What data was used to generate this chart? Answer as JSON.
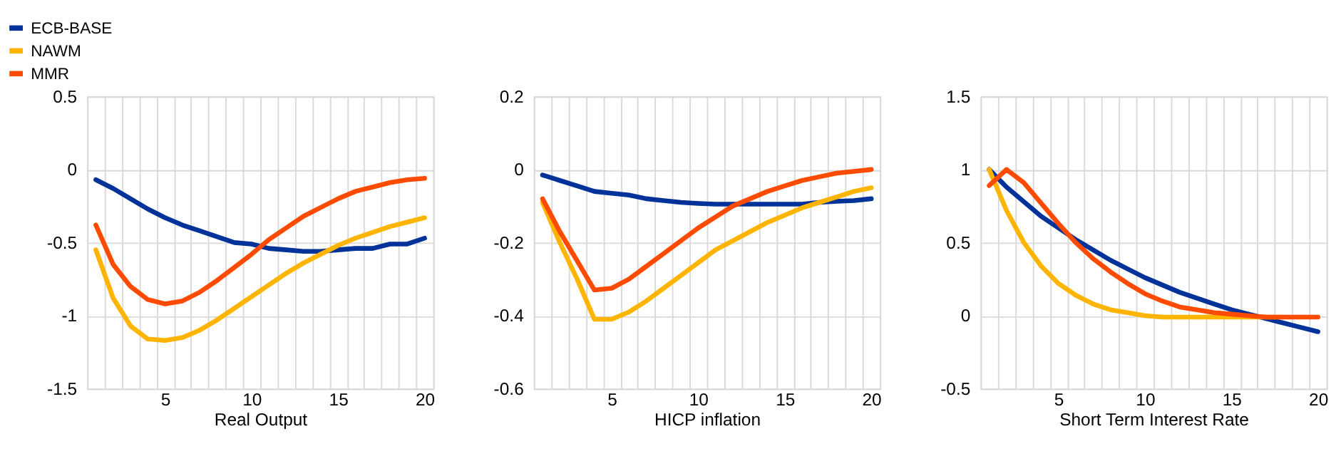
{
  "chart_data": [
    {
      "type": "line",
      "xlabel": "Real Output",
      "legend": "top left",
      "grid": true,
      "line_style": "solid",
      "marker": "none",
      "x": [
        1,
        2,
        3,
        4,
        5,
        6,
        7,
        8,
        9,
        10,
        11,
        12,
        13,
        14,
        15,
        16,
        17,
        18,
        19,
        20
      ],
      "xlim": [
        0.5,
        20.5
      ],
      "xticks": [
        {
          "value": 0.5,
          "label": null
        },
        {
          "value": 1.5,
          "label": null
        },
        {
          "value": 2.5,
          "label": null
        },
        {
          "value": 3.5,
          "label": null
        },
        {
          "value": 4.5,
          "label": null
        },
        5,
        {
          "value": 5.5,
          "label": null
        },
        {
          "value": 6.5,
          "label": null
        },
        {
          "value": 7.5,
          "label": null
        },
        {
          "value": 8.5,
          "label": null
        },
        {
          "value": 9.5,
          "label": null
        },
        10,
        {
          "value": 10.5,
          "label": null
        },
        {
          "value": 11.5,
          "label": null
        },
        {
          "value": 12.5,
          "label": null
        },
        {
          "value": 13.5,
          "label": null
        },
        {
          "value": 14.5,
          "label": null
        },
        15,
        {
          "value": 15.5,
          "label": null
        },
        {
          "value": 16.5,
          "label": null
        },
        {
          "value": 17.5,
          "label": null
        },
        {
          "value": 18.5,
          "label": null
        },
        {
          "value": 19.5,
          "label": null
        },
        20,
        {
          "value": 20.5,
          "label": null
        }
      ],
      "ylim": [
        -1.5,
        0.5
      ],
      "yticks": [
        -1.5,
        -1,
        -0.5,
        0,
        0.5
      ],
      "series": [
        {
          "name": "ECB-BASE",
          "color": "#003299",
          "values": [
            -0.07,
            -0.13,
            -0.2,
            -0.27,
            -0.33,
            -0.38,
            -0.42,
            -0.46,
            -0.5,
            -0.51,
            -0.54,
            -0.55,
            -0.56,
            -0.56,
            -0.55,
            -0.54,
            -0.54,
            -0.51,
            -0.51,
            -0.47
          ]
        },
        {
          "name": "NAWM",
          "color": "#ffb400",
          "values": [
            -0.55,
            -0.88,
            -1.07,
            -1.16,
            -1.17,
            -1.15,
            -1.1,
            -1.03,
            -0.95,
            -0.87,
            -0.79,
            -0.71,
            -0.64,
            -0.58,
            -0.52,
            -0.47,
            -0.43,
            -0.39,
            -0.36,
            -0.33
          ]
        },
        {
          "name": "MMR",
          "color": "#ff4b00",
          "values": [
            -0.38,
            -0.65,
            -0.8,
            -0.89,
            -0.92,
            -0.9,
            -0.84,
            -0.76,
            -0.67,
            -0.58,
            -0.48,
            -0.4,
            -0.32,
            -0.26,
            -0.2,
            -0.15,
            -0.12,
            -0.09,
            -0.07,
            -0.06
          ]
        }
      ]
    },
    {
      "type": "line",
      "xlabel": "HICP inflation",
      "grid": true,
      "line_style": "solid",
      "marker": "none",
      "x": [
        1,
        2,
        3,
        4,
        5,
        6,
        7,
        8,
        9,
        10,
        11,
        12,
        13,
        14,
        15,
        16,
        17,
        18,
        19,
        20
      ],
      "xlim": [
        0.5,
        20.5
      ],
      "xticks": [
        {
          "value": 0.5,
          "label": null
        },
        {
          "value": 1.5,
          "label": null
        },
        {
          "value": 2.5,
          "label": null
        },
        {
          "value": 3.5,
          "label": null
        },
        {
          "value": 4.5,
          "label": null
        },
        5,
        {
          "value": 5.5,
          "label": null
        },
        {
          "value": 6.5,
          "label": null
        },
        {
          "value": 7.5,
          "label": null
        },
        {
          "value": 8.5,
          "label": null
        },
        {
          "value": 9.5,
          "label": null
        },
        10,
        {
          "value": 10.5,
          "label": null
        },
        {
          "value": 11.5,
          "label": null
        },
        {
          "value": 12.5,
          "label": null
        },
        {
          "value": 13.5,
          "label": null
        },
        {
          "value": 14.5,
          "label": null
        },
        15,
        {
          "value": 15.5,
          "label": null
        },
        {
          "value": 16.5,
          "label": null
        },
        {
          "value": 17.5,
          "label": null
        },
        {
          "value": 18.5,
          "label": null
        },
        {
          "value": 19.5,
          "label": null
        },
        20,
        {
          "value": 20.5,
          "label": null
        }
      ],
      "ylim": [
        -0.6,
        0.2
      ],
      "yticks": [
        -0.6,
        -0.4,
        -0.2,
        0,
        0.2
      ],
      "series": [
        {
          "name": "ECB-BASE",
          "color": "#003299",
          "values": [
            -0.015,
            -0.03,
            -0.045,
            -0.06,
            -0.065,
            -0.07,
            -0.08,
            -0.085,
            -0.09,
            -0.093,
            -0.095,
            -0.095,
            -0.095,
            -0.095,
            -0.095,
            -0.095,
            -0.09,
            -0.087,
            -0.085,
            -0.08
          ]
        },
        {
          "name": "NAWM",
          "color": "#ffb400",
          "values": [
            -0.09,
            -0.2,
            -0.3,
            -0.41,
            -0.41,
            -0.39,
            -0.36,
            -0.325,
            -0.29,
            -0.255,
            -0.22,
            -0.195,
            -0.17,
            -0.145,
            -0.125,
            -0.105,
            -0.09,
            -0.075,
            -0.06,
            -0.05
          ]
        },
        {
          "name": "MMR",
          "color": "#ff4b00",
          "values": [
            -0.08,
            -0.17,
            -0.25,
            -0.33,
            -0.325,
            -0.3,
            -0.265,
            -0.23,
            -0.195,
            -0.16,
            -0.13,
            -0.1,
            -0.08,
            -0.06,
            -0.045,
            -0.03,
            -0.02,
            -0.01,
            -0.005,
            0.0
          ]
        }
      ]
    },
    {
      "type": "line",
      "xlabel": "Short Term Interest Rate",
      "grid": true,
      "line_style": "solid",
      "marker": "none",
      "x": [
        1,
        2,
        3,
        4,
        5,
        6,
        7,
        8,
        9,
        10,
        11,
        12,
        13,
        14,
        15,
        16,
        17,
        18,
        19,
        20
      ],
      "xlim": [
        0.5,
        20.5
      ],
      "xticks": [
        {
          "value": 0.5,
          "label": null
        },
        {
          "value": 1.5,
          "label": null
        },
        {
          "value": 2.5,
          "label": null
        },
        {
          "value": 3.5,
          "label": null
        },
        {
          "value": 4.5,
          "label": null
        },
        5,
        {
          "value": 5.5,
          "label": null
        },
        {
          "value": 6.5,
          "label": null
        },
        {
          "value": 7.5,
          "label": null
        },
        {
          "value": 8.5,
          "label": null
        },
        {
          "value": 9.5,
          "label": null
        },
        10,
        {
          "value": 10.5,
          "label": null
        },
        {
          "value": 11.5,
          "label": null
        },
        {
          "value": 12.5,
          "label": null
        },
        {
          "value": 13.5,
          "label": null
        },
        {
          "value": 14.5,
          "label": null
        },
        15,
        {
          "value": 15.5,
          "label": null
        },
        {
          "value": 16.5,
          "label": null
        },
        {
          "value": 17.5,
          "label": null
        },
        {
          "value": 18.5,
          "label": null
        },
        {
          "value": 19.5,
          "label": null
        },
        20,
        {
          "value": 20.5,
          "label": null
        }
      ],
      "ylim": [
        -0.5,
        1.5
      ],
      "yticks": [
        -0.5,
        0,
        0.5,
        1,
        1.5
      ],
      "series": [
        {
          "name": "ECB-BASE",
          "color": "#003299",
          "values": [
            1.0,
            0.88,
            0.78,
            0.68,
            0.6,
            0.52,
            0.45,
            0.38,
            0.32,
            0.26,
            0.21,
            0.16,
            0.12,
            0.08,
            0.04,
            0.01,
            -0.02,
            -0.05,
            -0.08,
            -0.11
          ]
        },
        {
          "name": "NAWM",
          "color": "#ffb400",
          "values": [
            1.0,
            0.72,
            0.5,
            0.34,
            0.22,
            0.14,
            0.08,
            0.04,
            0.02,
            0.0,
            -0.01,
            -0.01,
            -0.01,
            -0.01,
            -0.01,
            -0.01,
            -0.01,
            -0.01,
            null,
            null
          ]
        },
        {
          "name": "MMR",
          "color": "#ff4b00",
          "values": [
            0.89,
            1.0,
            0.91,
            0.77,
            0.63,
            0.5,
            0.39,
            0.3,
            0.22,
            0.15,
            0.1,
            0.06,
            0.04,
            0.02,
            0.01,
            0.0,
            -0.01,
            -0.01,
            -0.01,
            -0.01
          ]
        }
      ]
    }
  ]
}
